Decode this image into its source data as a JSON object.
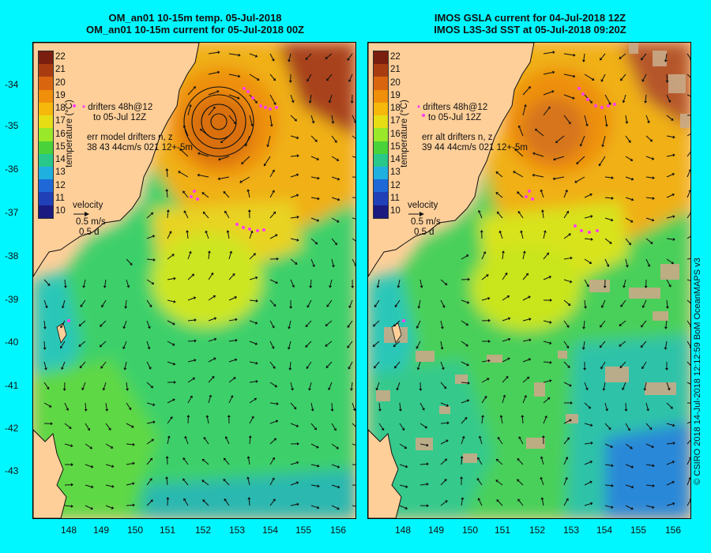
{
  "left_panel": {
    "title_line1": "OM_an01 10-15m temp. 05-Jul-2018",
    "title_line2": "OM_an01 10-15m current for 05-Jul-2018 00Z",
    "drifters_label_line1": "drifters 48h@12",
    "drifters_label_line2": "to 05-Jul 12Z",
    "err_label_line1": "err model drifters n, z",
    "err_label_line2": "38 43 44cm/s 021 12+-5m"
  },
  "right_panel": {
    "title_line1": "IMOS GSLA current for 04-Jul-2018 12Z",
    "title_line2": "IMOS L3S-3d SST at 05-Jul-2018 09:20Z",
    "drifters_label_line1": "drifters 48h@12",
    "drifters_label_line2": "to 05-Jul 12Z",
    "err_label_line1": "err alt drifters n, z",
    "err_label_line2": "39 44 44cm/s 021 12+-5m"
  },
  "velocity_legend": {
    "title": "velocity",
    "speed": "0.5 m/s",
    "duration": "0.5 d"
  },
  "colorbar": {
    "label": "temperature (°C)",
    "ticks": [
      "22",
      "21",
      "20",
      "19",
      "18",
      "17",
      "16",
      "15",
      "14",
      "13",
      "12",
      "11",
      "10"
    ],
    "colors": [
      "#7a1e0f",
      "#a83c10",
      "#d9660f",
      "#f08f0a",
      "#f7b80c",
      "#e6dd15",
      "#9ae82a",
      "#4ad23a",
      "#27c88a",
      "#1fb0e0",
      "#1e68d8",
      "#2040b8",
      "#1a1a80"
    ]
  },
  "axes": {
    "y_ticks": [
      "-34",
      "-35",
      "-36",
      "-37",
      "-38",
      "-39",
      "-40",
      "-41",
      "-42",
      "-43"
    ],
    "x_ticks": [
      "148",
      "149",
      "150",
      "151",
      "152",
      "153",
      "154",
      "155",
      "156"
    ]
  },
  "credit": "© CSIRO 2018   14-Jul-2018 12:12:59 BoM OceanMAPS v3"
}
